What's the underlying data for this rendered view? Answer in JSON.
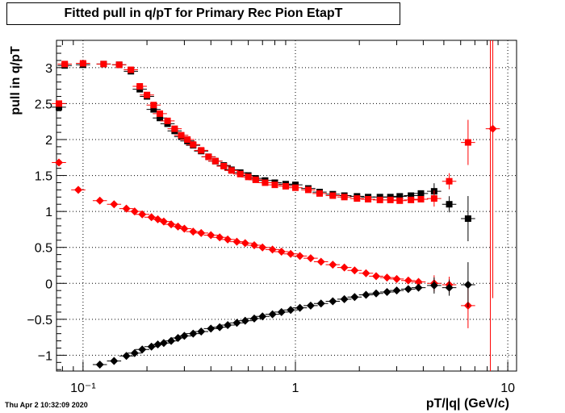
{
  "chart_data": {
    "type": "scatter",
    "title": "Fitted pull in q/pT for Primary Rec Pion EtapT",
    "xlabel": "pT/|q| (GeV/c)",
    "ylabel": "pull in q/pT",
    "x_scale": "log",
    "xlim": [
      0.075,
      11.0
    ],
    "ylim": [
      -1.22,
      3.38
    ],
    "grid": true,
    "x_major_ticks": [
      0.1,
      1,
      10
    ],
    "x_tick_labels": [
      "10⁻¹",
      "1",
      "10"
    ],
    "y_ticks": [
      -1,
      -0.5,
      0,
      0.5,
      1,
      1.5,
      2,
      2.5,
      3
    ],
    "y_tick_labels": [
      "−1",
      "−0.5",
      "0",
      "0.5",
      "1",
      "1.5",
      "2",
      "2.5",
      "3"
    ],
    "series": [
      {
        "color": "#000000",
        "marker": "square",
        "x": [
          0.077,
          0.082,
          0.1,
          0.125,
          0.148,
          0.168,
          0.185,
          0.2,
          0.215,
          0.23,
          0.25,
          0.27,
          0.29,
          0.31,
          0.33,
          0.36,
          0.39,
          0.42,
          0.46,
          0.5,
          0.55,
          0.6,
          0.65,
          0.72,
          0.8,
          0.9,
          1.0,
          1.15,
          1.3,
          1.5,
          1.7,
          1.95,
          2.2,
          2.5,
          2.8,
          3.1,
          3.5,
          3.9,
          4.5,
          5.3,
          6.5
        ],
        "y": [
          2.45,
          3.03,
          3.04,
          3.05,
          3.04,
          2.95,
          2.7,
          2.6,
          2.42,
          2.3,
          2.22,
          2.12,
          2.04,
          1.98,
          1.92,
          1.84,
          1.76,
          1.7,
          1.64,
          1.58,
          1.54,
          1.5,
          1.46,
          1.43,
          1.4,
          1.38,
          1.37,
          1.32,
          1.27,
          1.24,
          1.22,
          1.21,
          1.2,
          1.2,
          1.2,
          1.21,
          1.22,
          1.25,
          1.28,
          1.1,
          0.9
        ]
      },
      {
        "color": "#ff0000",
        "marker": "square",
        "x": [
          0.077,
          0.082,
          0.1,
          0.125,
          0.148,
          0.168,
          0.185,
          0.2,
          0.215,
          0.23,
          0.25,
          0.27,
          0.29,
          0.31,
          0.33,
          0.36,
          0.39,
          0.42,
          0.46,
          0.5,
          0.55,
          0.6,
          0.65,
          0.72,
          0.8,
          0.9,
          1.0,
          1.15,
          1.3,
          1.5,
          1.7,
          1.95,
          2.2,
          2.5,
          2.8,
          3.1,
          3.5,
          3.9,
          4.5,
          5.3,
          6.5
        ],
        "y": [
          2.5,
          3.05,
          3.06,
          3.05,
          3.04,
          2.97,
          2.74,
          2.62,
          2.48,
          2.36,
          2.26,
          2.15,
          2.06,
          2.0,
          1.93,
          1.85,
          1.76,
          1.7,
          1.63,
          1.57,
          1.52,
          1.48,
          1.44,
          1.4,
          1.37,
          1.35,
          1.33,
          1.3,
          1.25,
          1.22,
          1.2,
          1.18,
          1.17,
          1.16,
          1.16,
          1.15,
          1.16,
          1.17,
          1.18,
          1.42,
          1.96
        ]
      },
      {
        "color": "#ff0000",
        "marker": "diamond",
        "x": [
          0.077,
          0.095,
          0.12,
          0.14,
          0.16,
          0.175,
          0.19,
          0.21,
          0.225,
          0.24,
          0.26,
          0.28,
          0.3,
          0.33,
          0.36,
          0.4,
          0.44,
          0.48,
          0.53,
          0.58,
          0.64,
          0.7,
          0.78,
          0.86,
          0.95,
          1.05,
          1.18,
          1.32,
          1.5,
          1.7,
          1.9,
          2.15,
          2.4,
          2.7,
          3.0,
          3.4,
          3.8,
          4.5,
          5.3,
          6.5,
          8.5
        ],
        "y": [
          1.68,
          1.3,
          1.15,
          1.1,
          1.04,
          1.0,
          0.96,
          0.92,
          0.89,
          0.86,
          0.82,
          0.79,
          0.76,
          0.72,
          0.7,
          0.67,
          0.64,
          0.61,
          0.58,
          0.56,
          0.53,
          0.5,
          0.47,
          0.44,
          0.41,
          0.38,
          0.35,
          0.3,
          0.26,
          0.22,
          0.18,
          0.14,
          0.1,
          0.08,
          0.06,
          0.04,
          0.02,
          0.0,
          -0.02,
          -0.31,
          2.15
        ]
      },
      {
        "color": "#000000",
        "marker": "diamond",
        "x": [
          0.12,
          0.14,
          0.16,
          0.175,
          0.19,
          0.21,
          0.225,
          0.24,
          0.26,
          0.28,
          0.3,
          0.33,
          0.36,
          0.4,
          0.44,
          0.48,
          0.53,
          0.58,
          0.64,
          0.7,
          0.78,
          0.86,
          0.95,
          1.05,
          1.18,
          1.32,
          1.5,
          1.7,
          1.9,
          2.15,
          2.4,
          2.7,
          3.0,
          3.4,
          3.8,
          4.5,
          5.3,
          6.5
        ],
        "y": [
          -1.13,
          -1.08,
          -1.01,
          -0.97,
          -0.92,
          -0.88,
          -0.85,
          -0.83,
          -0.8,
          -0.76,
          -0.73,
          -0.7,
          -0.67,
          -0.63,
          -0.61,
          -0.58,
          -0.55,
          -0.52,
          -0.49,
          -0.46,
          -0.43,
          -0.4,
          -0.37,
          -0.34,
          -0.31,
          -0.28,
          -0.25,
          -0.22,
          -0.19,
          -0.16,
          -0.14,
          -0.12,
          -0.1,
          -0.08,
          -0.06,
          -0.03,
          -0.06,
          -0.02
        ]
      }
    ]
  },
  "footer": {
    "timestamp": "Thu Apr  2 10:32:09 2020"
  }
}
